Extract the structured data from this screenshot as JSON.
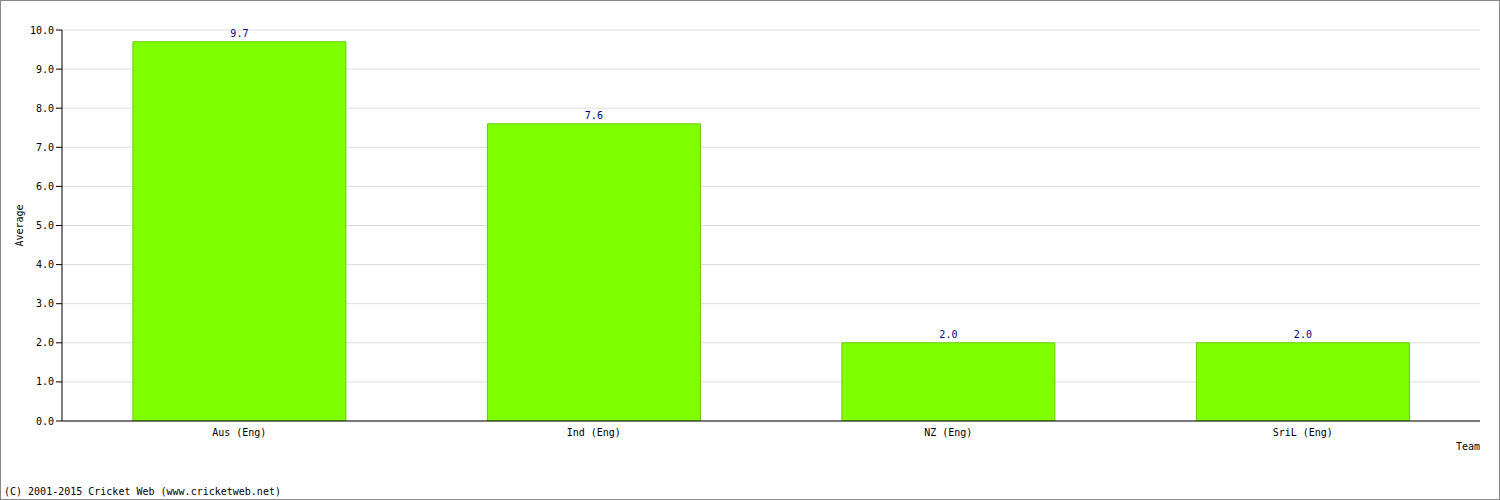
{
  "chart_data": {
    "type": "bar",
    "categories": [
      "Aus (Eng)",
      "Ind (Eng)",
      "NZ (Eng)",
      "SriL (Eng)"
    ],
    "values": [
      9.7,
      7.6,
      2.0,
      2.0
    ],
    "value_labels": [
      "9.7",
      "7.6",
      "2.0",
      "2.0"
    ],
    "color": "#80ff00",
    "x_label": "Team",
    "y_label": "Average",
    "annotations": [
      "(C) 2001-2015 Cricket Web (www.cricketweb.net)"
    ],
    "ylim": [
      0,
      10
    ],
    "yticks": [
      {
        "value": 0,
        "label": "0.0"
      },
      {
        "value": 1,
        "label": "1.0"
      },
      {
        "value": 2,
        "label": "2.0"
      },
      {
        "value": 3,
        "label": "3.0"
      },
      {
        "value": 4,
        "label": "4.0"
      },
      {
        "value": 5,
        "label": "5.0"
      },
      {
        "value": 6,
        "label": "6.0"
      },
      {
        "value": 7,
        "label": "7.0"
      },
      {
        "value": 8,
        "label": "8.0"
      },
      {
        "value": 9,
        "label": "9.0"
      },
      {
        "value": 10,
        "label": "10.0"
      }
    ],
    "grid": true,
    "data_labels": true
  }
}
